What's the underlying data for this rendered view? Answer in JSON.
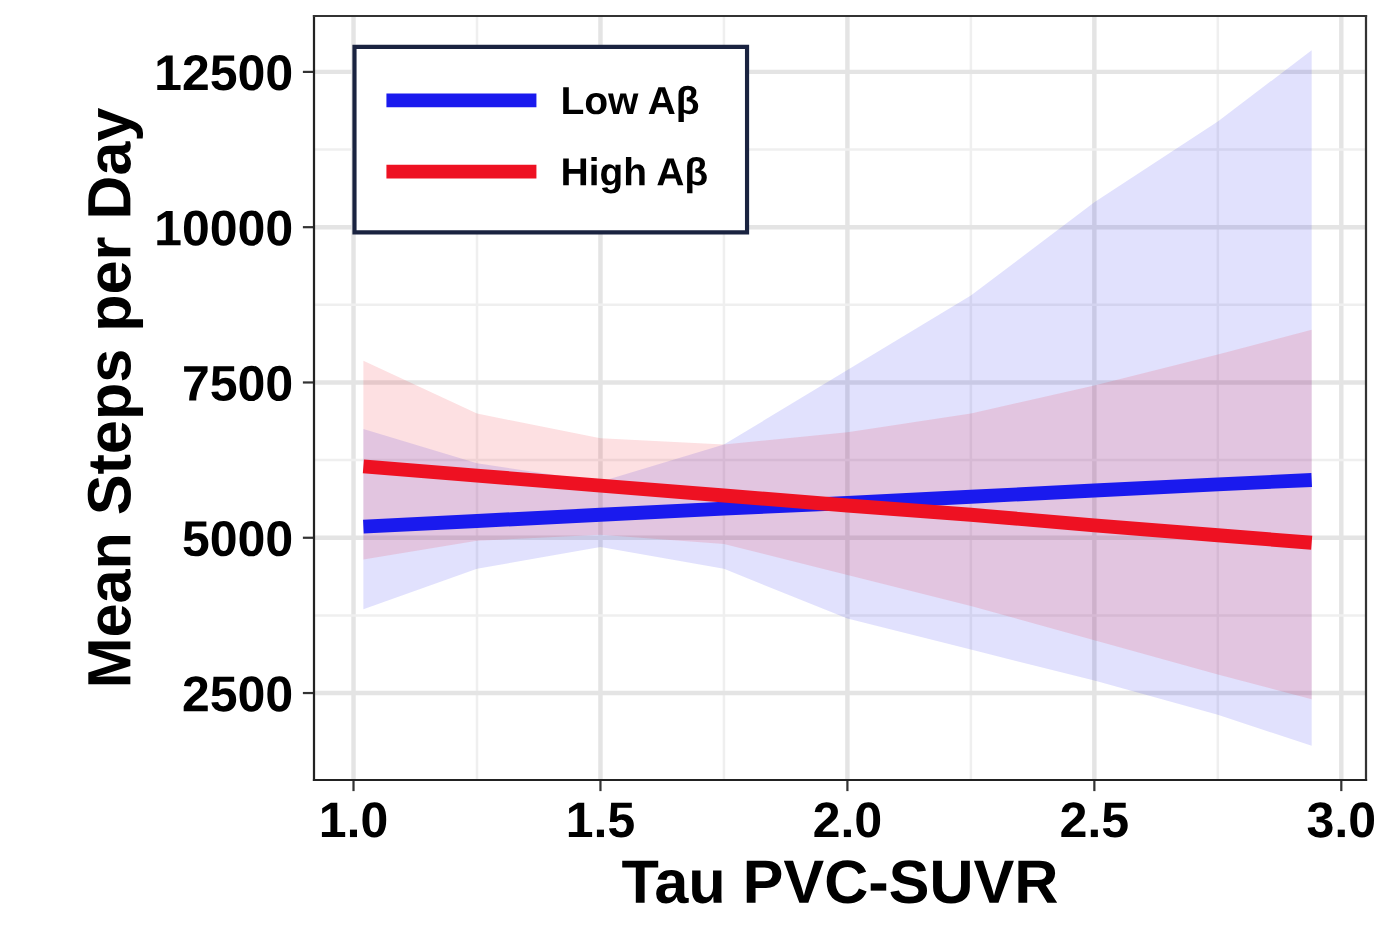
{
  "chart_data": {
    "type": "line",
    "xlabel": "Tau PVC-SUVR",
    "ylabel": "Mean Steps per Day",
    "x": [
      1.02,
      1.25,
      1.5,
      1.75,
      2.0,
      2.25,
      2.5,
      2.75,
      2.94
    ],
    "series": [
      {
        "name": "Low Aβ",
        "color": "#1a1aee",
        "values": [
          5180,
          5270,
          5370,
          5470,
          5560,
          5660,
          5760,
          5860,
          5930
        ],
        "lower": [
          3850,
          4500,
          4850,
          4500,
          3700,
          3200,
          2700,
          2150,
          1650
        ],
        "upper": [
          6750,
          6200,
          5900,
          6500,
          7700,
          8900,
          10400,
          11700,
          12850
        ]
      },
      {
        "name": "High Aβ",
        "color": "#ee1122",
        "values": [
          6150,
          6000,
          5840,
          5680,
          5520,
          5370,
          5200,
          5040,
          4920
        ],
        "lower": [
          4650,
          4950,
          5050,
          4900,
          4400,
          3900,
          3350,
          2800,
          2400
        ],
        "upper": [
          7850,
          7000,
          6600,
          6500,
          6700,
          7000,
          7450,
          7950,
          8350
        ]
      }
    ],
    "xlim": [
      0.92,
      3.05
    ],
    "ylim": [
      1100,
      13400
    ],
    "xticks": [
      {
        "value": 1,
        "label": "1.0"
      },
      {
        "value": 1.5,
        "label": "1.5"
      },
      {
        "value": 2,
        "label": "2.0"
      },
      {
        "value": 2.5,
        "label": "2.5"
      },
      {
        "value": 3,
        "label": "3.0"
      }
    ],
    "yticks": [
      2500,
      5000,
      7500,
      10000,
      12500
    ],
    "grid": true,
    "legend": "top left",
    "line_style": "solid",
    "marker": "none"
  }
}
